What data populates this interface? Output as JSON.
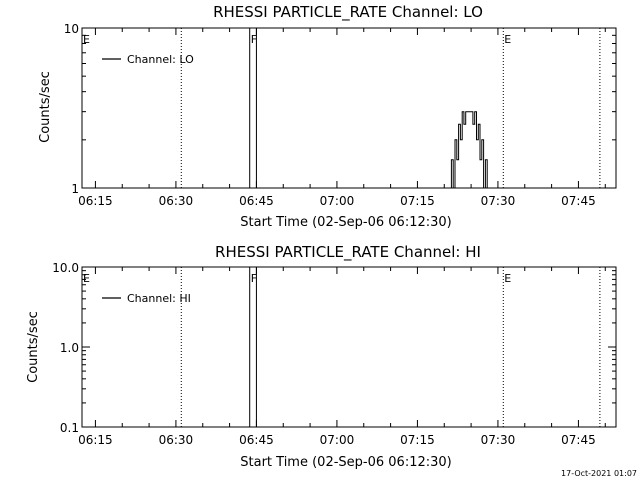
{
  "footer": {
    "timestamp": "17-Oct-2021 01:07"
  },
  "chart_data": [
    {
      "type": "line",
      "title": "RHESSI PARTICLE_RATE Channel: LO",
      "xlabel": "Start Time (02-Sep-06 06:12:30)",
      "ylabel": "Counts/sec",
      "yscale": "log",
      "ylim": [
        1,
        10
      ],
      "ytick_labels": [
        "1",
        "10"
      ],
      "xlim": [
        "06:12:30",
        "07:52:00"
      ],
      "xtick_labels": [
        "06:15",
        "06:30",
        "06:45",
        "07:00",
        "07:15",
        "07:30",
        "07:45"
      ],
      "legend": {
        "label": "Channel: LO",
        "placement": "top-left"
      },
      "flags": [
        {
          "label": "E",
          "time": "06:12:30",
          "style": "dotted"
        },
        {
          "label": "",
          "time": "06:31:00",
          "style": "dotted"
        },
        {
          "label": "F",
          "time": "06:43:45",
          "style": "solid"
        },
        {
          "label": "",
          "time": "06:45:00",
          "style": "solid"
        },
        {
          "label": "E",
          "time": "07:31:00",
          "style": "dotted"
        },
        {
          "label": "",
          "time": "07:49:00",
          "style": "dotted"
        }
      ],
      "series": [
        {
          "name": "Channel: LO",
          "points": [
            [
              "07:21:00",
              1
            ],
            [
              "07:21:20",
              1.5
            ],
            [
              "07:21:40",
              1
            ],
            [
              "07:22:00",
              2
            ],
            [
              "07:22:20",
              1.5
            ],
            [
              "07:22:40",
              2.5
            ],
            [
              "07:23:00",
              2
            ],
            [
              "07:23:20",
              3
            ],
            [
              "07:23:40",
              2.5
            ],
            [
              "07:24:00",
              3
            ],
            [
              "07:24:20",
              3
            ],
            [
              "07:24:40",
              3
            ],
            [
              "07:25:00",
              3
            ],
            [
              "07:25:20",
              2.5
            ],
            [
              "07:25:40",
              3
            ],
            [
              "07:26:00",
              2
            ],
            [
              "07:26:20",
              2.5
            ],
            [
              "07:26:40",
              1.5
            ],
            [
              "07:27:00",
              2
            ],
            [
              "07:27:20",
              1
            ],
            [
              "07:27:40",
              1.5
            ],
            [
              "07:28:00",
              1
            ]
          ]
        }
      ]
    },
    {
      "type": "line",
      "title": "RHESSI PARTICLE_RATE Channel: HI",
      "xlabel": "Start Time (02-Sep-06 06:12:30)",
      "ylabel": "Counts/sec",
      "yscale": "log",
      "ylim": [
        0.1,
        10
      ],
      "ytick_labels": [
        "0.1",
        "1.0",
        "10.0"
      ],
      "xlim": [
        "06:12:30",
        "07:52:00"
      ],
      "xtick_labels": [
        "06:15",
        "06:30",
        "06:45",
        "07:00",
        "07:15",
        "07:30",
        "07:45"
      ],
      "legend": {
        "label": "Channel: HI",
        "placement": "top-left"
      },
      "flags": [
        {
          "label": "E",
          "time": "06:12:30",
          "style": "dotted"
        },
        {
          "label": "",
          "time": "06:31:00",
          "style": "dotted"
        },
        {
          "label": "F",
          "time": "06:43:45",
          "style": "solid"
        },
        {
          "label": "",
          "time": "06:45:00",
          "style": "solid"
        },
        {
          "label": "E",
          "time": "07:31:00",
          "style": "dotted"
        },
        {
          "label": "",
          "time": "07:49:00",
          "style": "dotted"
        }
      ],
      "series": []
    }
  ]
}
